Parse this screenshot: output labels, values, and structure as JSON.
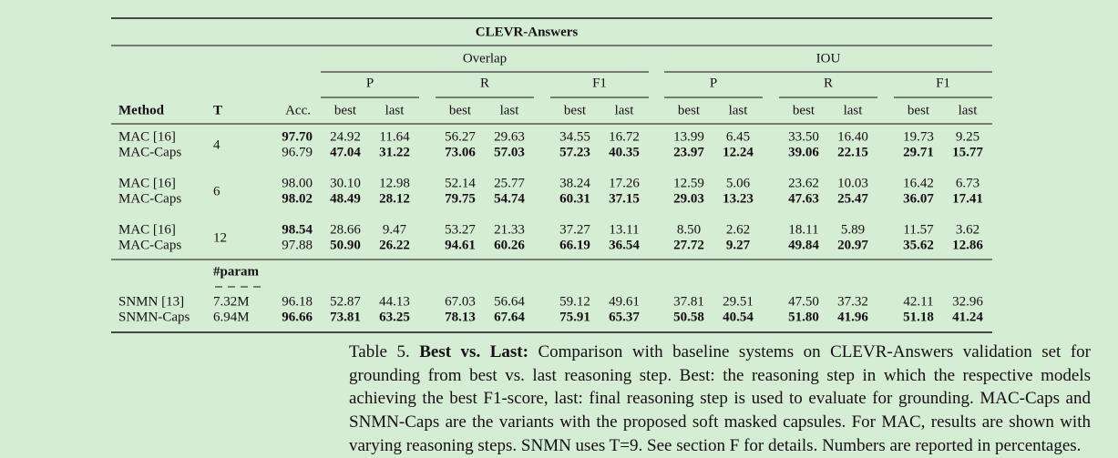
{
  "table": {
    "title": "CLEVR-Answers",
    "groups": [
      "Overlap",
      "IOU"
    ],
    "metrics": [
      "P",
      "R",
      "F1"
    ],
    "subs": [
      "best",
      "last"
    ],
    "columns": [
      "Method",
      "T",
      "Acc."
    ],
    "param_header": "#param",
    "blocks": [
      {
        "t": "4",
        "rows": [
          {
            "method": "MAC [16]",
            "values": [
              "97.70",
              "24.92",
              "11.64",
              "56.27",
              "29.63",
              "34.55",
              "16.72",
              "13.99",
              "6.45",
              "33.50",
              "16.40",
              "19.73",
              "9.25"
            ],
            "bold": [
              0
            ]
          },
          {
            "method": "MAC-Caps",
            "values": [
              "96.79",
              "47.04",
              "31.22",
              "73.06",
              "57.03",
              "57.23",
              "40.35",
              "23.97",
              "12.24",
              "39.06",
              "22.15",
              "29.71",
              "15.77"
            ],
            "bold": [
              1,
              2,
              3,
              4,
              5,
              6,
              7,
              8,
              9,
              10,
              11,
              12
            ]
          }
        ]
      },
      {
        "t": "6",
        "rows": [
          {
            "method": "MAC [16]",
            "values": [
              "98.00",
              "30.10",
              "12.98",
              "52.14",
              "25.77",
              "38.24",
              "17.26",
              "12.59",
              "5.06",
              "23.62",
              "10.03",
              "16.42",
              "6.73"
            ],
            "bold": []
          },
          {
            "method": "MAC-Caps",
            "values": [
              "98.02",
              "48.49",
              "28.12",
              "79.75",
              "54.74",
              "60.31",
              "37.15",
              "29.03",
              "13.23",
              "47.63",
              "25.47",
              "36.07",
              "17.41"
            ],
            "bold": [
              0,
              1,
              2,
              3,
              4,
              5,
              6,
              7,
              8,
              9,
              10,
              11,
              12
            ]
          }
        ]
      },
      {
        "t": "12",
        "rows": [
          {
            "method": "MAC [16]",
            "values": [
              "98.54",
              "28.66",
              "9.47",
              "53.27",
              "21.33",
              "37.27",
              "13.11",
              "8.50",
              "2.62",
              "18.11",
              "5.89",
              "11.57",
              "3.62"
            ],
            "bold": [
              0
            ]
          },
          {
            "method": "MAC-Caps",
            "values": [
              "97.88",
              "50.90",
              "26.22",
              "94.61",
              "60.26",
              "66.19",
              "36.54",
              "27.72",
              "9.27",
              "49.84",
              "20.97",
              "35.62",
              "12.86"
            ],
            "bold": [
              1,
              2,
              3,
              4,
              5,
              6,
              7,
              8,
              9,
              10,
              11,
              12
            ]
          }
        ]
      }
    ],
    "snmn_rows": [
      {
        "method": "SNMN [13]",
        "param": "7.32M",
        "values": [
          "96.18",
          "52.87",
          "44.13",
          "67.03",
          "56.64",
          "59.12",
          "49.61",
          "37.81",
          "29.51",
          "47.50",
          "37.32",
          "42.11",
          "32.96"
        ],
        "bold": []
      },
      {
        "method": "SNMN-Caps",
        "param": "6.94M",
        "values": [
          "96.66",
          "73.81",
          "63.25",
          "78.13",
          "67.64",
          "75.91",
          "65.37",
          "50.58",
          "40.54",
          "51.80",
          "41.96",
          "51.18",
          "41.24"
        ],
        "bold": [
          0,
          1,
          2,
          3,
          4,
          5,
          6,
          7,
          8,
          9,
          10,
          11,
          12
        ]
      }
    ]
  },
  "caption": {
    "label": "Table 5.",
    "lead": "Best vs. Last:",
    "text": "Comparison with baseline systems on CLEVR-Answers validation set for grounding from best vs. last reasoning step. Best: the reasoning step in which the respective models achieving the best F1-score, last: final reasoning step is used to evaluate for grounding. MAC-Caps and SNMN-Caps are the variants with the proposed soft masked capsules. For MAC, results are shown with varying reasoning steps. SNMN uses T=9. See section F for details. Numbers are reported in percentages."
  }
}
